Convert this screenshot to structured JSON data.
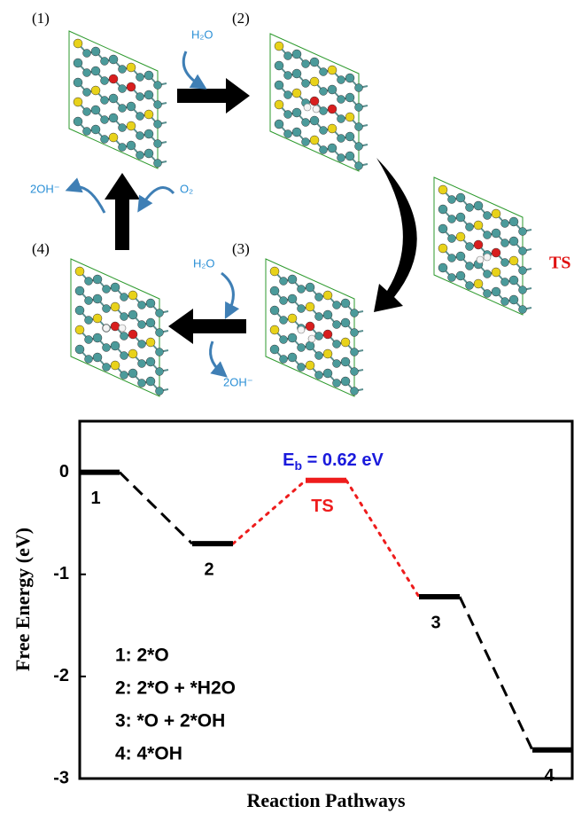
{
  "diagram": {
    "labels": {
      "step1": "(1)",
      "step2": "(2)",
      "step3": "(3)",
      "step4": "(4)",
      "ts": "TS"
    },
    "species": {
      "water_in_1": "H₂O",
      "hydroxide_out_1": "2OH⁻",
      "oxygen_in": "O₂",
      "water_in_2": "H₂O",
      "hydroxide_out_2": "2OH⁻"
    }
  },
  "chart_data": {
    "type": "energy-profile",
    "y_label": "Free Energy (eV)",
    "x_label": "Reaction Pathways",
    "categories": [
      "1",
      "2",
      "TS",
      "3",
      "4"
    ],
    "values": [
      0,
      -0.7,
      -0.08,
      -1.22,
      -2.72
    ],
    "colors": [
      "#000000",
      "#000000",
      "#ee1c1c",
      "#000000",
      "#000000"
    ],
    "connector_colors": [
      "#000000",
      "#ee1c1c",
      "#ee1c1c",
      "#000000"
    ],
    "annotation": {
      "symbol": "E",
      "subscript": "b",
      "text": " = 0.62 eV",
      "color": "#1a1adc"
    },
    "legend": [
      "1: 2*O",
      "2: 2*O + *H2O",
      "3: *O + 2*OH",
      "4: 4*OH"
    ],
    "ylim": [
      -3,
      0.5
    ],
    "yticks": [
      0,
      -1,
      -2,
      -3
    ]
  }
}
